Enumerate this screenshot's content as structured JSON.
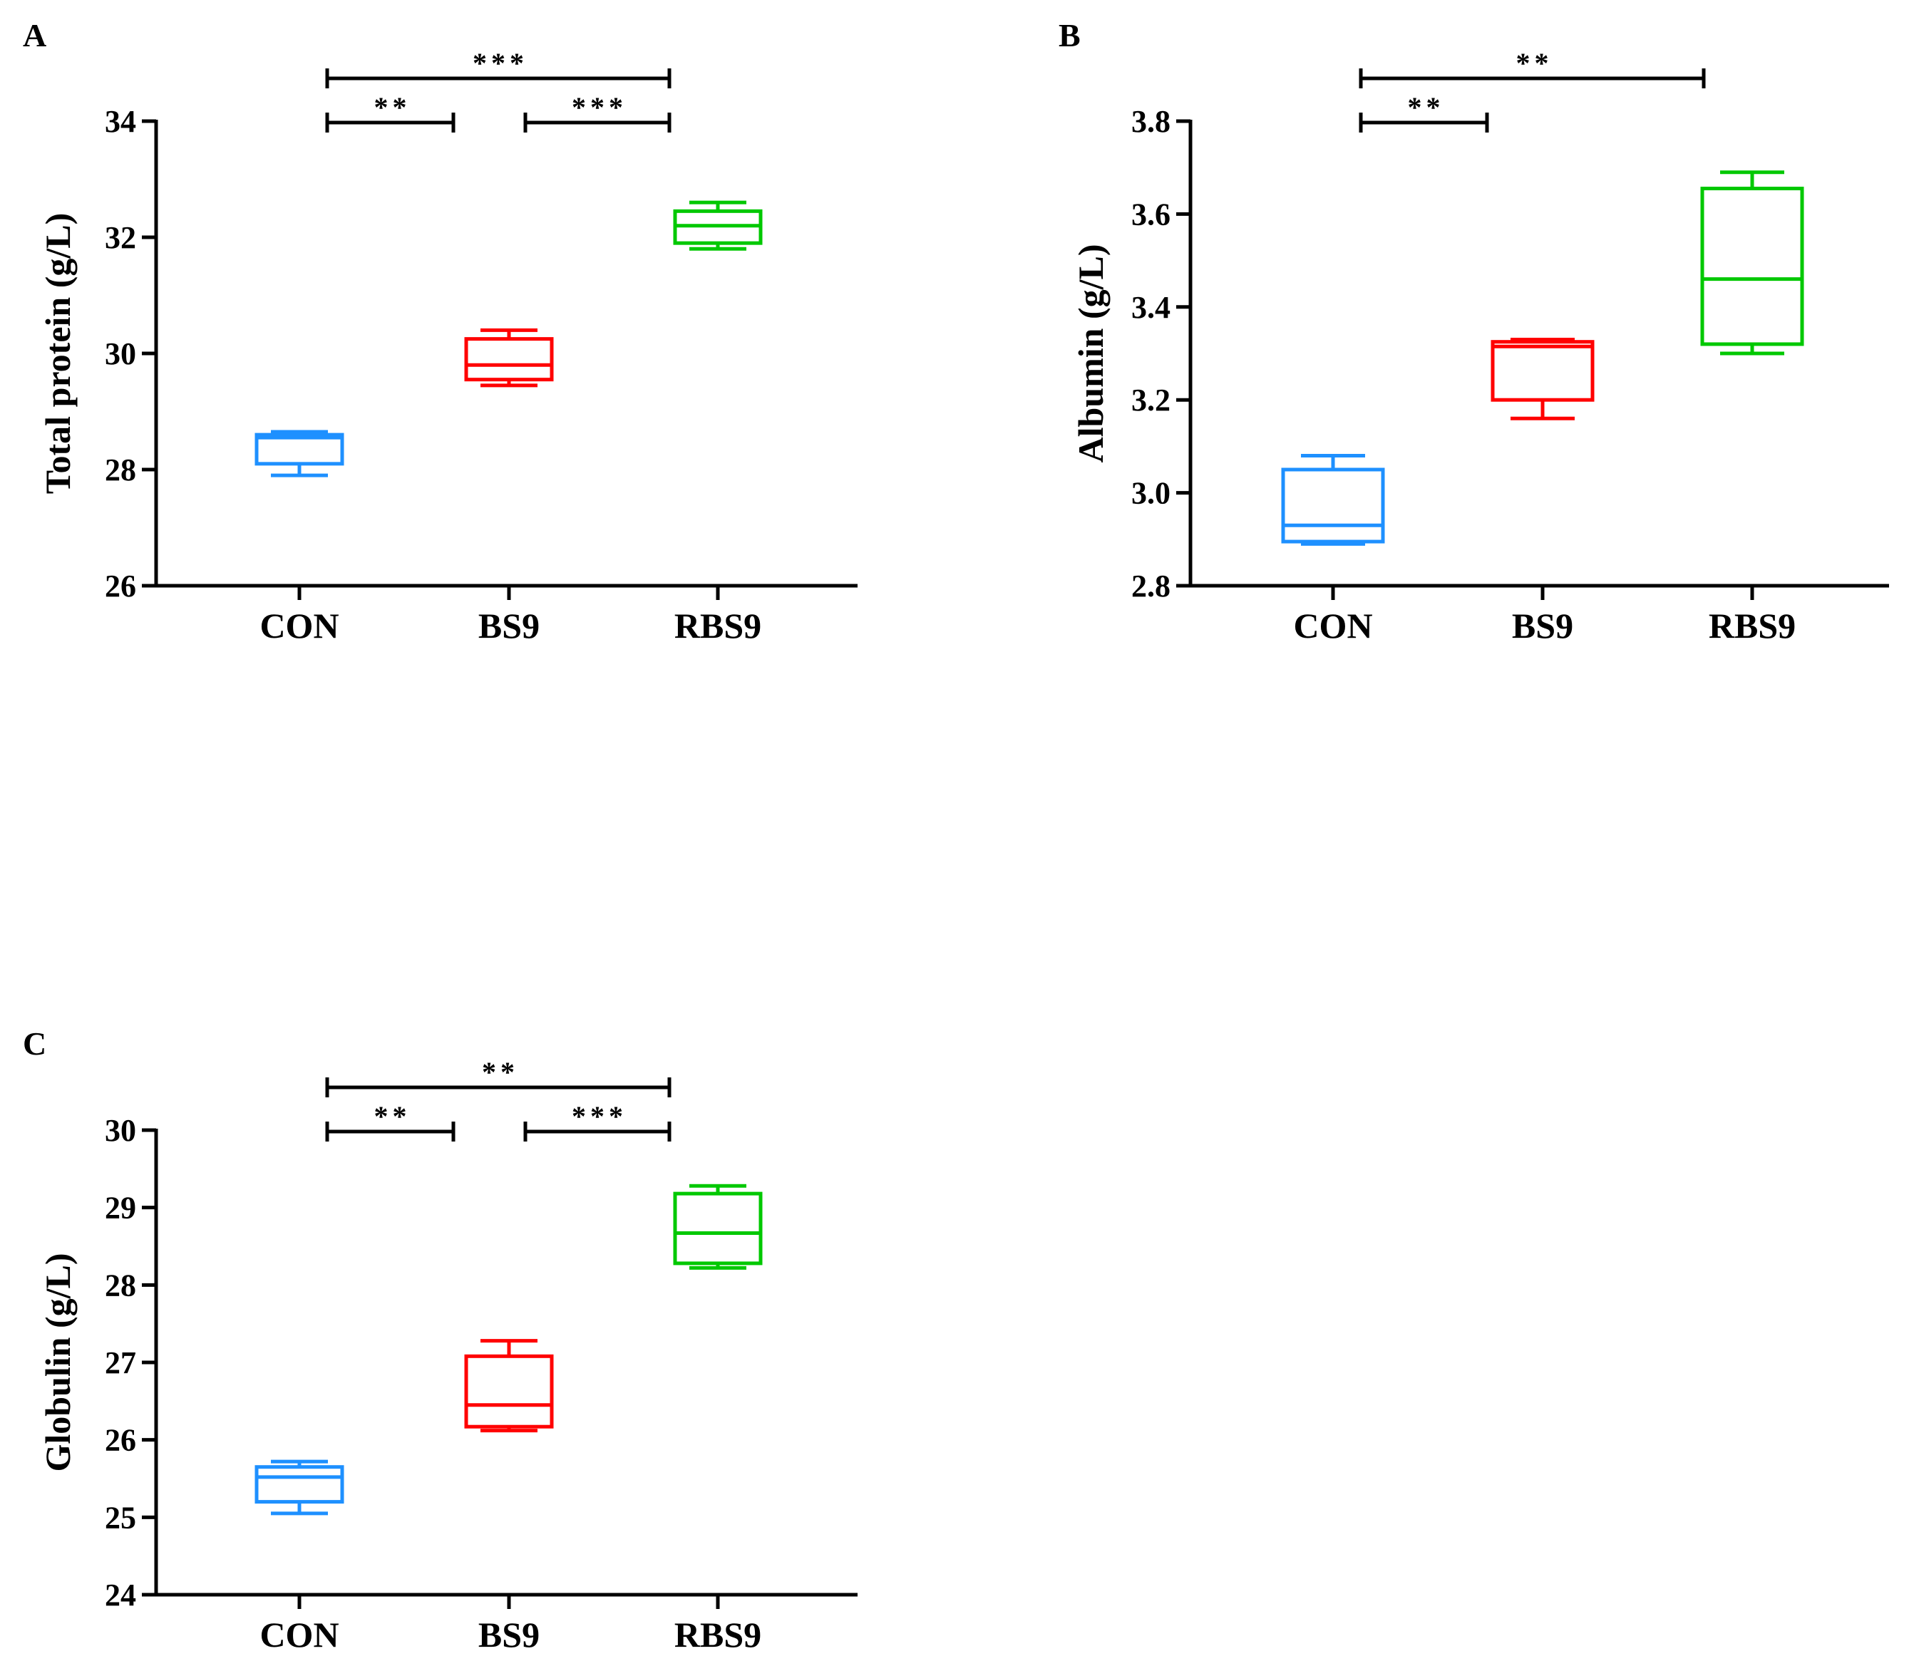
{
  "chart_data": [
    {
      "panel": "A",
      "type": "box",
      "title": "",
      "xlabel": "",
      "ylabel": "Total protein (g/L)",
      "ylim": [
        26,
        34
      ],
      "yticks": [
        26,
        28,
        30,
        32,
        34
      ],
      "ytick_labels": [
        "26",
        "28",
        "30",
        "32",
        "34"
      ],
      "categories": [
        "CON",
        "BS9",
        "RBS9"
      ],
      "colors": [
        "#1E90FF",
        "#FF0000",
        "#00C800"
      ],
      "boxes": [
        {
          "min": 27.9,
          "q1": 28.1,
          "median": 28.55,
          "q3": 28.6,
          "max": 28.65
        },
        {
          "min": 29.45,
          "q1": 29.55,
          "median": 29.8,
          "q3": 30.25,
          "max": 30.4
        },
        {
          "min": 31.8,
          "q1": 31.9,
          "median": 32.2,
          "q3": 32.45,
          "max": 32.6
        }
      ],
      "significance": [
        {
          "from": 0,
          "to": 2,
          "label": "***",
          "level": 2
        },
        {
          "from": 0,
          "to": 1,
          "label": "**",
          "level": 1
        },
        {
          "from": 1,
          "to": 2,
          "label": "***",
          "level": 1
        }
      ]
    },
    {
      "panel": "B",
      "type": "box",
      "title": "",
      "xlabel": "",
      "ylabel": "Albumin (g/L)",
      "ylim": [
        2.8,
        3.8
      ],
      "yticks": [
        2.8,
        3.0,
        3.2,
        3.4,
        3.6,
        3.8
      ],
      "ytick_labels": [
        "2.8",
        "3.0",
        "3.2",
        "3.4",
        "3.6",
        "3.8"
      ],
      "categories": [
        "CON",
        "BS9",
        "RBS9"
      ],
      "colors": [
        "#1E90FF",
        "#FF0000",
        "#00C800"
      ],
      "boxes": [
        {
          "min": 2.89,
          "q1": 2.895,
          "median": 2.93,
          "q3": 3.05,
          "max": 3.08
        },
        {
          "min": 3.16,
          "q1": 3.2,
          "median": 3.315,
          "q3": 3.325,
          "max": 3.33
        },
        {
          "min": 3.3,
          "q1": 3.32,
          "median": 3.46,
          "q3": 3.655,
          "max": 3.69
        }
      ],
      "significance": [
        {
          "from": 0,
          "to": 2,
          "label": "**",
          "level": 2
        },
        {
          "from": 0,
          "to": 1,
          "label": "**",
          "level": 1
        }
      ]
    },
    {
      "panel": "C",
      "type": "box",
      "title": "",
      "xlabel": "",
      "ylabel": "Globulin (g/L)",
      "ylim": [
        24,
        30
      ],
      "yticks": [
        24,
        25,
        26,
        27,
        28,
        29,
        30
      ],
      "ytick_labels": [
        "24",
        "25",
        "26",
        "27",
        "28",
        "29",
        "30"
      ],
      "categories": [
        "CON",
        "BS9",
        "RBS9"
      ],
      "colors": [
        "#1E90FF",
        "#FF0000",
        "#00C800"
      ],
      "boxes": [
        {
          "min": 25.05,
          "q1": 25.2,
          "median": 25.52,
          "q3": 25.65,
          "max": 25.72
        },
        {
          "min": 26.12,
          "q1": 26.17,
          "median": 26.45,
          "q3": 27.08,
          "max": 27.28
        },
        {
          "min": 28.22,
          "q1": 28.28,
          "median": 28.67,
          "q3": 29.18,
          "max": 29.28
        }
      ],
      "significance": [
        {
          "from": 0,
          "to": 2,
          "label": "**",
          "level": 2
        },
        {
          "from": 0,
          "to": 1,
          "label": "**",
          "level": 1
        },
        {
          "from": 1,
          "to": 2,
          "label": "***",
          "level": 1
        }
      ]
    }
  ]
}
